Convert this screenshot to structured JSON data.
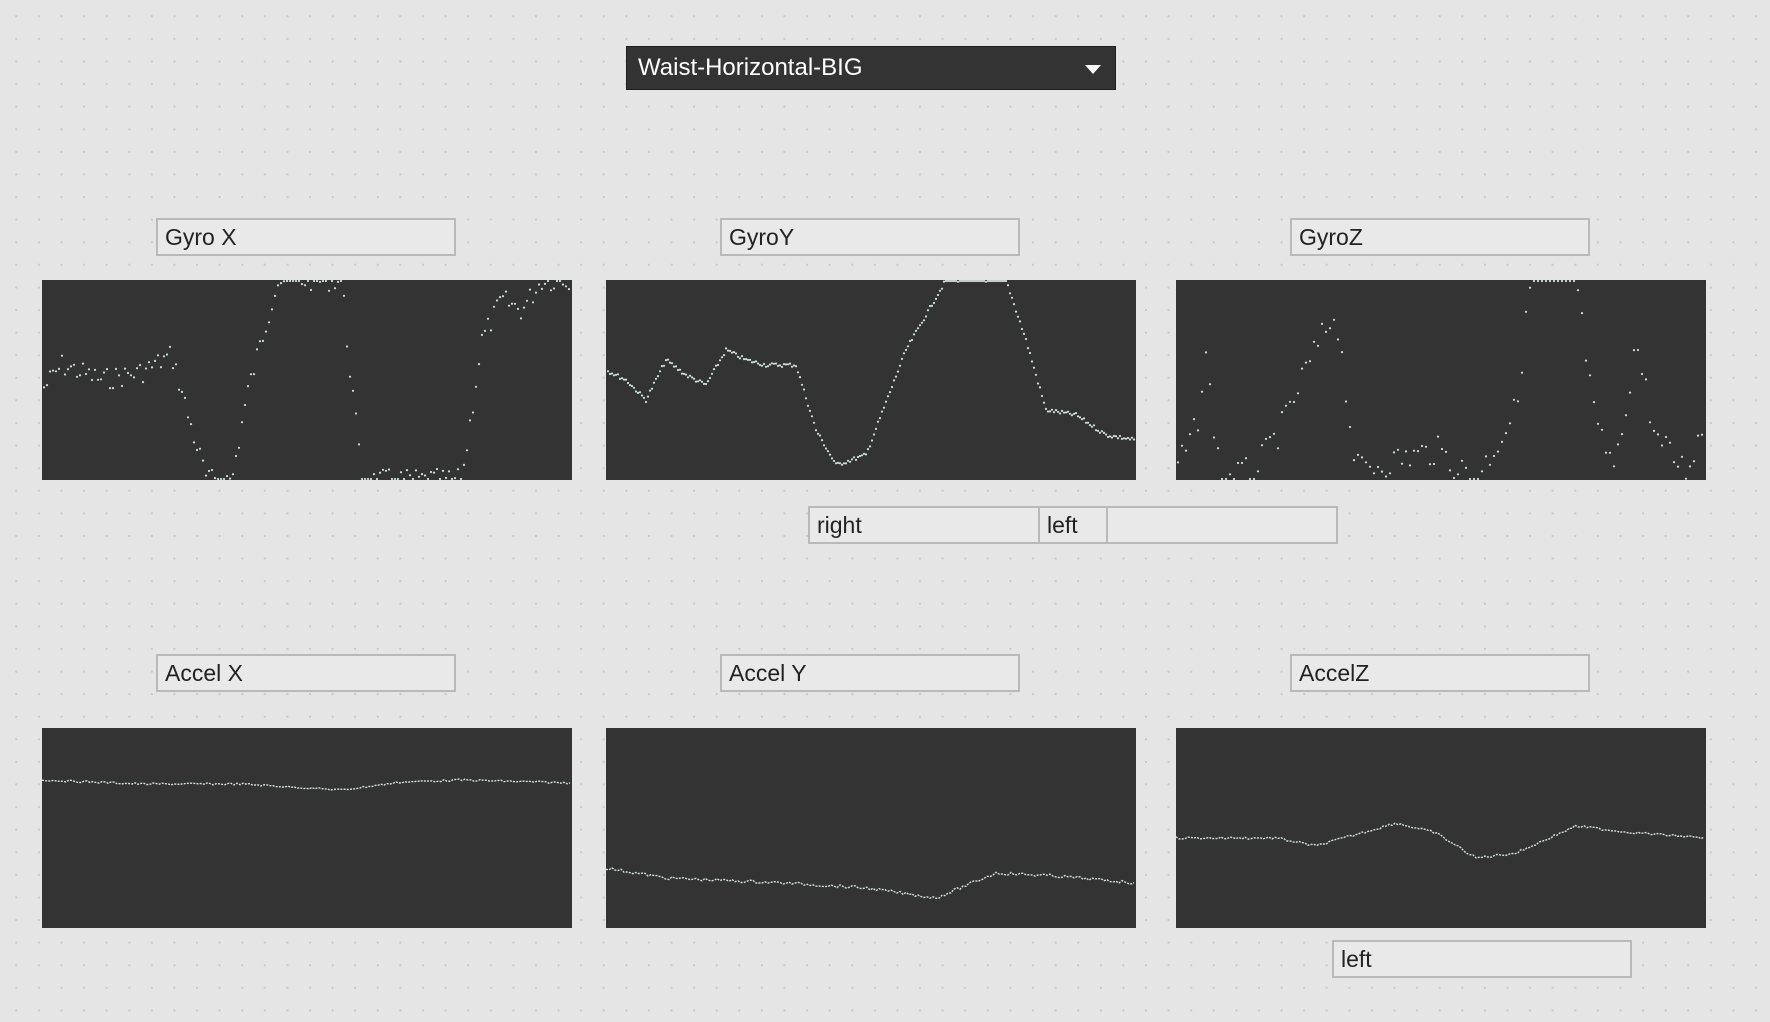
{
  "preset_dropdown": {
    "selected": "Waist-Horizontal-BIG"
  },
  "panels": {
    "gyro_x": {
      "label": "Gyro X"
    },
    "gyro_y": {
      "label": "GyroY"
    },
    "gyro_z": {
      "label": "GyroZ"
    },
    "accel_x": {
      "label": "Accel X"
    },
    "accel_y": {
      "label": "Accel Y"
    },
    "accel_z": {
      "label": "AccelZ"
    }
  },
  "gyro_classification": {
    "primary": "right",
    "secondary": "left"
  },
  "accel_classification": {
    "value": "left"
  },
  "colors": {
    "plot_background": "#333333",
    "trace": "#cfe0dc",
    "page_background": "#e5e5e5"
  }
}
